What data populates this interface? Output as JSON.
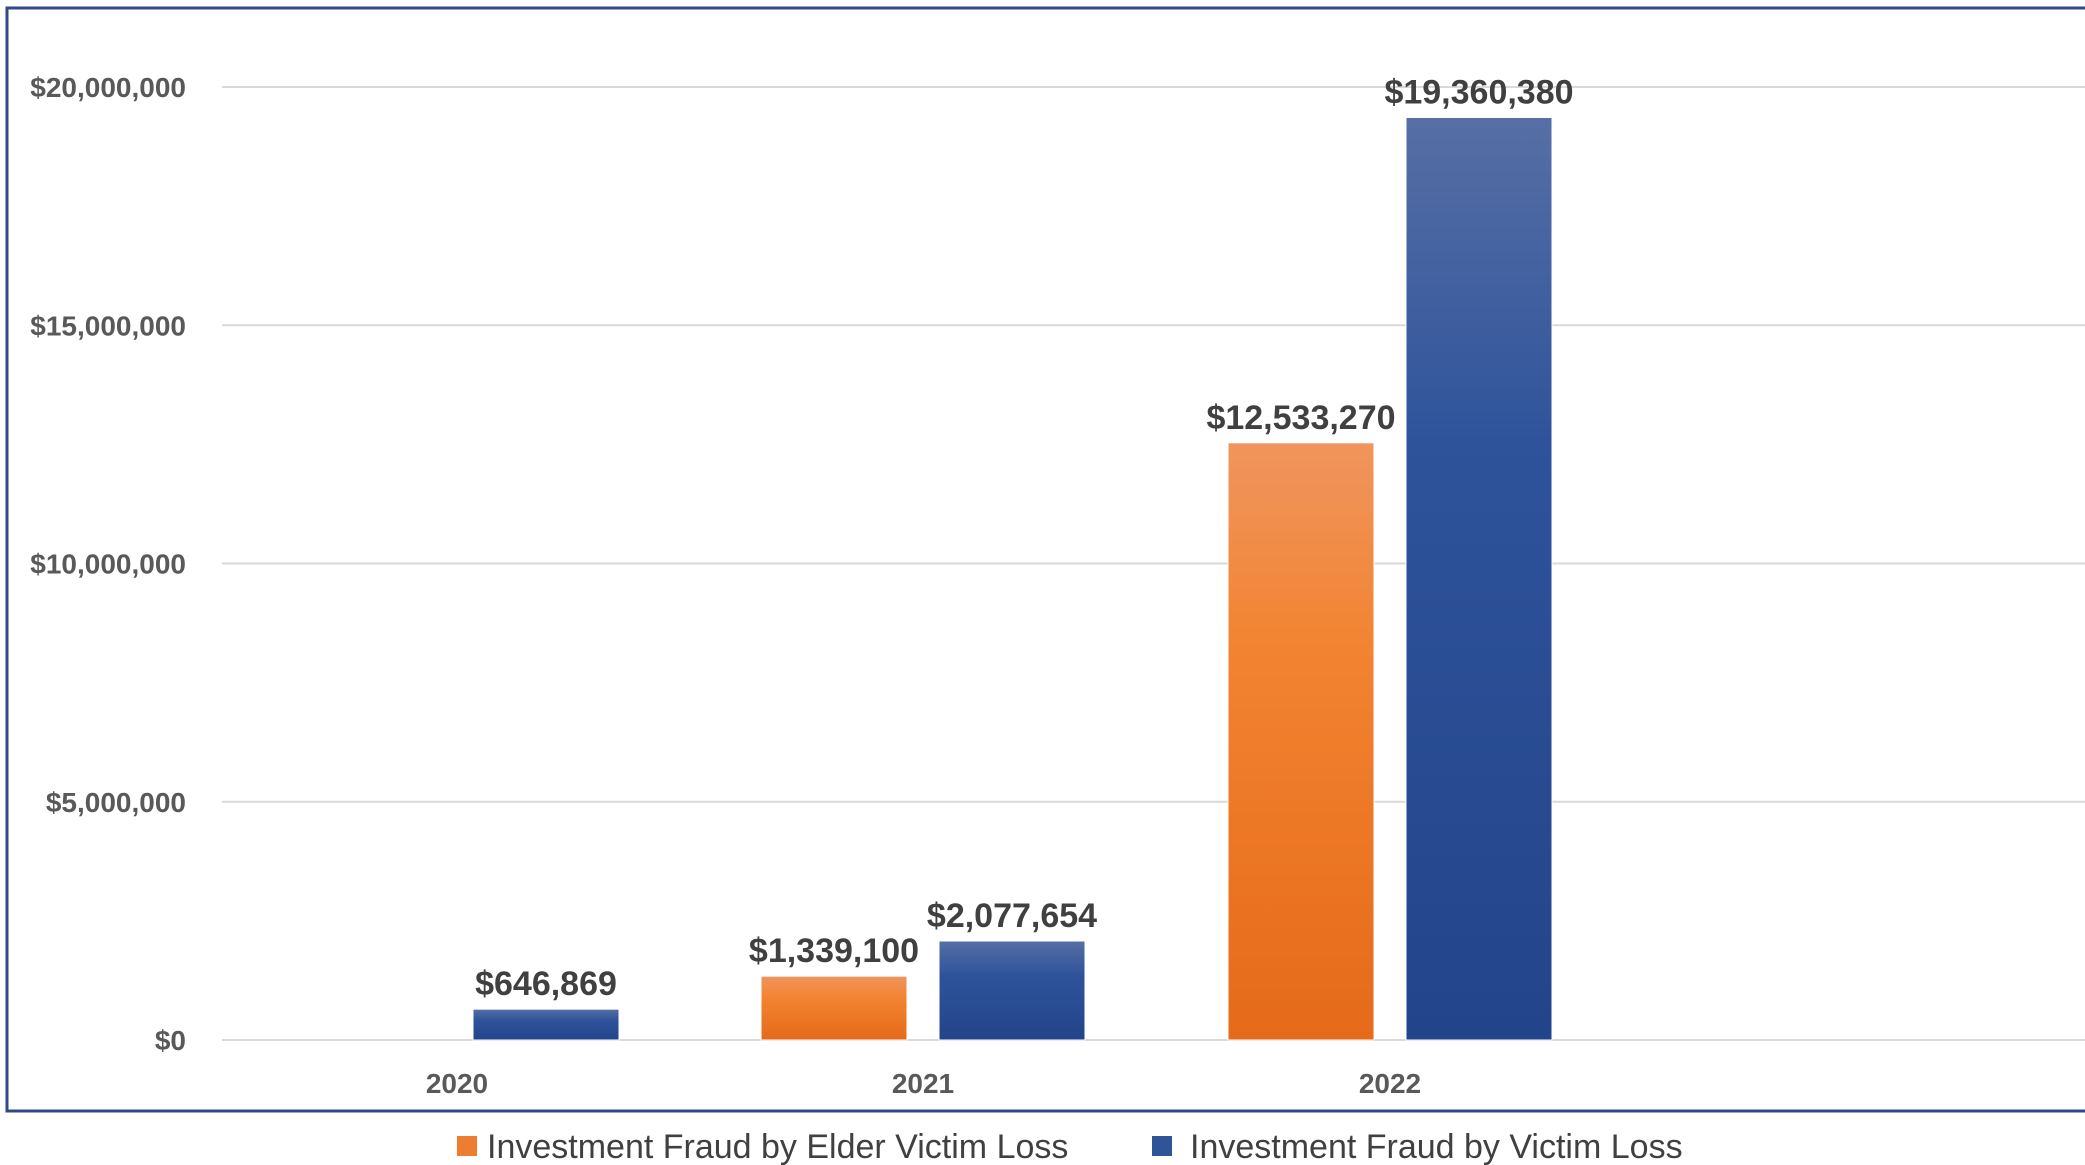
{
  "chart_data": {
    "type": "bar",
    "title": "",
    "xlabel": "",
    "ylabel": "",
    "categories": [
      "2020",
      "2021",
      "2022"
    ],
    "series": [
      {
        "name": "Investment Fraud by Elder Victim Loss",
        "color": "#ED7D31",
        "values": [
          null,
          1339100,
          12533270
        ],
        "labels": [
          "",
          "$1,339,100",
          "$12,533,270"
        ]
      },
      {
        "name": "Investment Fraud by Victim Loss",
        "color": "#2F5597",
        "values": [
          646869,
          2077654,
          19360380
        ],
        "labels": [
          "$646,869",
          "$2,077,654",
          "$19,360,380"
        ]
      }
    ],
    "ylim": [
      0,
      20000000
    ],
    "yticks": [
      0,
      5000000,
      10000000,
      15000000,
      20000000
    ],
    "ytick_labels": [
      "$0",
      "$5,000,000",
      "$10,000,000",
      "$15,000,000",
      "$20,000,000"
    ],
    "grid": true,
    "legend_position": "bottom",
    "frame_color": "#2F4A8A",
    "gridline_color": "#D9D9D9"
  }
}
